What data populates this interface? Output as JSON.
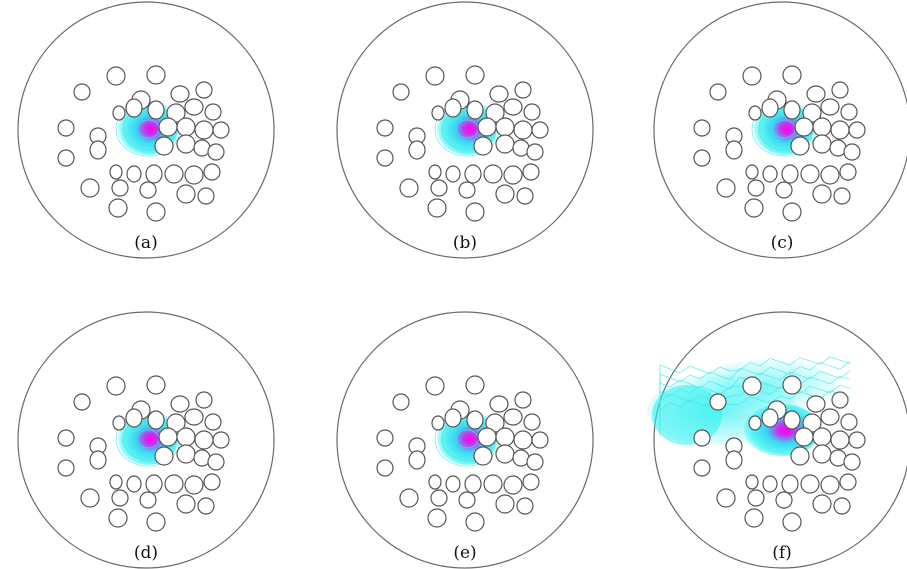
{
  "figure": {
    "panels": [
      {
        "label": "(a)",
        "mode": "localized"
      },
      {
        "label": "(b)",
        "mode": "localized"
      },
      {
        "label": "(c)",
        "mode": "localized"
      },
      {
        "label": "(d)",
        "mode": "localized"
      },
      {
        "label": "(e)",
        "mode": "localized"
      },
      {
        "label": "(f)",
        "mode": "leaky"
      }
    ],
    "colors": {
      "outline": "#6a6a6a",
      "hole_stroke": "#555555",
      "field_low": "#2ef0f0",
      "field_high": "#ff00e6"
    }
  }
}
